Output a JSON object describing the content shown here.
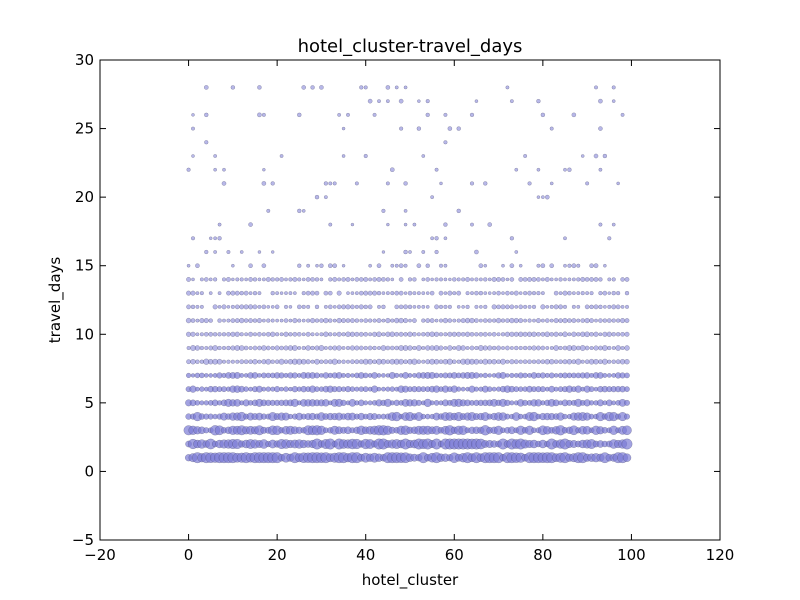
{
  "chart_data": {
    "type": "scatter",
    "title": "hotel_cluster-travel_days",
    "xlabel": "hotel_cluster",
    "ylabel": "travel_days",
    "xlim": [
      -20,
      120
    ],
    "ylim": [
      -5,
      30
    ],
    "xticks": [
      "−20",
      "0",
      "20",
      "40",
      "60",
      "80",
      "100",
      "120"
    ],
    "xtick_values": [
      -20,
      0,
      20,
      40,
      60,
      80,
      100,
      120
    ],
    "yticks": [
      "−5",
      "0",
      "5",
      "10",
      "15",
      "20",
      "25",
      "30"
    ],
    "ytick_values": [
      -5,
      0,
      5,
      10,
      15,
      20,
      25,
      30
    ],
    "grid": false,
    "marker_color": "#7b7bd6",
    "marker_edge_color": "#3a3a5a",
    "note_size": "marker area encodes count of observations",
    "clusters": {
      "start": 0,
      "end": 99
    },
    "rows": [
      {
        "y": 1,
        "fill": 1.0,
        "size": 1.0
      },
      {
        "y": 2,
        "fill": 1.0,
        "size": 0.78
      },
      {
        "y": 3,
        "fill": 1.0,
        "size": 0.64
      },
      {
        "y": 4,
        "fill": 1.0,
        "size": 0.56
      },
      {
        "y": 5,
        "fill": 1.0,
        "size": 0.46
      },
      {
        "y": 6,
        "fill": 1.0,
        "size": 0.4
      },
      {
        "y": 7,
        "fill": 1.0,
        "size": 0.36
      },
      {
        "y": 8,
        "fill": 1.0,
        "size": 0.3
      },
      {
        "y": 9,
        "fill": 1.0,
        "size": 0.27
      },
      {
        "y": 10,
        "fill": 1.0,
        "size": 0.25
      },
      {
        "y": 11,
        "fill": 0.97,
        "size": 0.23
      },
      {
        "y": 12,
        "fill": 0.85,
        "size": 0.21
      },
      {
        "y": 13,
        "fill": 0.8,
        "size": 0.2
      },
      {
        "y": 14,
        "fill": 0.8,
        "size": 0.2
      },
      {
        "y": 15,
        "fill": 0.38,
        "size": 0.18
      },
      {
        "y": 16,
        "fill": 0.12,
        "size": 0.17
      },
      {
        "y": 17,
        "fill": 0.1,
        "size": 0.17
      },
      {
        "y": 18,
        "fill": 0.18,
        "size": 0.17
      },
      {
        "y": 19,
        "fill": 0.13,
        "size": 0.17
      },
      {
        "y": 20,
        "fill": 0.09,
        "size": 0.17
      },
      {
        "y": 21,
        "fill": 0.15,
        "size": 0.17
      },
      {
        "y": 22,
        "fill": 0.1,
        "size": 0.17
      },
      {
        "y": 23,
        "fill": 0.1,
        "size": 0.17
      },
      {
        "y": 24,
        "fill": 0.02,
        "size": 0.17
      },
      {
        "y": 25,
        "fill": 0.1,
        "size": 0.17
      },
      {
        "y": 26,
        "fill": 0.12,
        "size": 0.17
      },
      {
        "y": 27,
        "fill": 0.1,
        "size": 0.17
      },
      {
        "y": 28,
        "fill": 0.12,
        "size": 0.17
      }
    ]
  }
}
